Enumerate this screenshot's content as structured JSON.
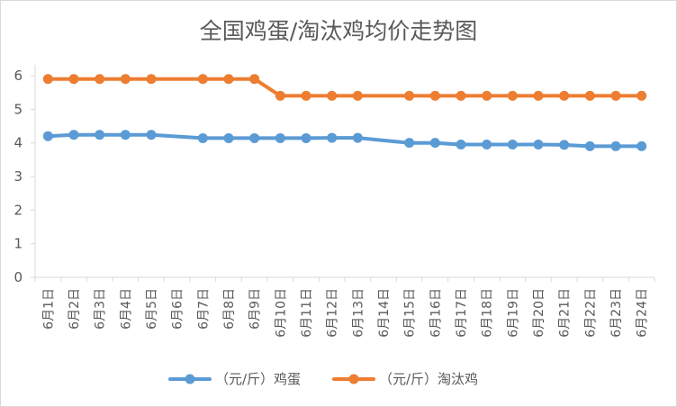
{
  "chart_data": {
    "type": "line",
    "title": "全国鸡蛋/淘汰鸡均价走势图",
    "xlabel": "",
    "ylabel": "",
    "ylim": [
      0,
      6
    ],
    "yticks": [
      0,
      1,
      2,
      3,
      4,
      5,
      6
    ],
    "grid": false,
    "legend_position": "bottom",
    "categories": [
      "6月1日",
      "6月2日",
      "6月3日",
      "6月4日",
      "6月5日",
      "6月6日",
      "6月7日",
      "6月8日",
      "6月9日",
      "6月10日",
      "6月11日",
      "6月12日",
      "6月13日",
      "6月14日",
      "6月15日",
      "6月16日",
      "6月17日",
      "6月18日",
      "6月19日",
      "6月20日",
      "6月21日",
      "6月22日",
      "6月23日",
      "6月24日"
    ],
    "series": [
      {
        "name": "（元/斤）鸡蛋",
        "color": "#5b9bd5",
        "values": [
          4.2,
          4.24,
          4.24,
          4.24,
          4.24,
          null,
          4.14,
          4.14,
          4.14,
          4.14,
          4.14,
          4.15,
          4.15,
          null,
          4.0,
          4.0,
          3.95,
          3.95,
          3.95,
          3.95,
          3.94,
          3.9,
          3.9,
          3.9
        ]
      },
      {
        "name": "（元/斤）淘汰鸡",
        "color": "#ed7d31",
        "values": [
          5.9,
          5.9,
          5.9,
          5.9,
          5.9,
          null,
          5.9,
          5.9,
          5.9,
          5.4,
          5.4,
          5.4,
          5.4,
          null,
          5.4,
          5.4,
          5.4,
          5.4,
          5.4,
          5.4,
          5.4,
          5.4,
          5.4,
          5.4
        ]
      }
    ]
  }
}
